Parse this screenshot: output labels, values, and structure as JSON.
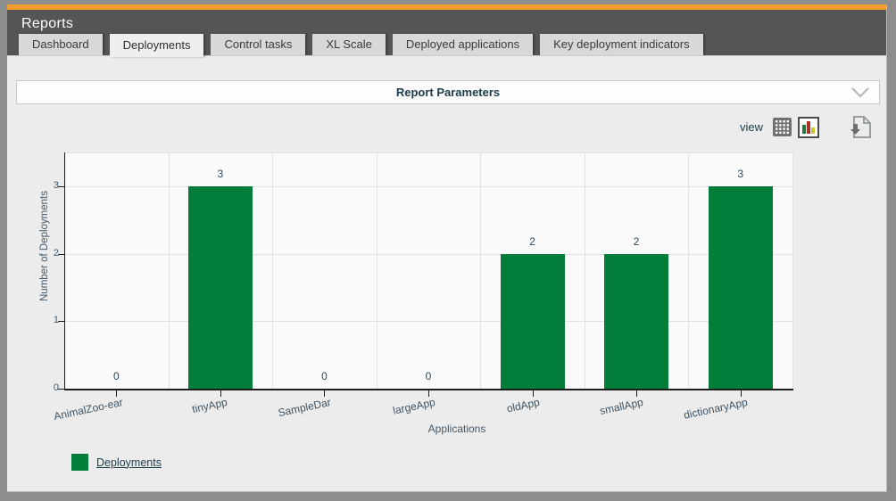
{
  "header": {
    "title": "Reports"
  },
  "tabs": [
    {
      "label": "Dashboard",
      "active": false
    },
    {
      "label": "Deployments",
      "active": true
    },
    {
      "label": "Control tasks",
      "active": false
    },
    {
      "label": "XL Scale",
      "active": false
    },
    {
      "label": "Deployed applications",
      "active": false
    },
    {
      "label": "Key deployment indicators",
      "active": false
    }
  ],
  "report_parameters": {
    "title": "Report Parameters",
    "collapsed": true
  },
  "toolbar": {
    "view_label": "view",
    "views": [
      "table",
      "chart"
    ],
    "selected_view": "chart",
    "icons": [
      "table-view-icon",
      "chart-view-icon",
      "export-report-icon"
    ]
  },
  "chart_data": {
    "type": "bar",
    "title": "",
    "categories": [
      "AnimalZoo-ear",
      "tinyApp",
      "SampleDar",
      "largeApp",
      "oldApp",
      "smallApp",
      "dictionaryApp"
    ],
    "series": [
      {
        "name": "Deployments",
        "values": [
          0,
          3,
          0,
          0,
          2,
          2,
          3
        ],
        "color": "#027e3a"
      }
    ],
    "xlabel": "Applications",
    "ylabel": "Number of Deployments",
    "yticks": [
      0,
      1,
      2,
      3
    ],
    "ylim": [
      0,
      3.5
    ],
    "grid": true,
    "bar_value_labels": true,
    "legend_position": "bottom-left"
  },
  "legend": {
    "items": [
      {
        "label": "Deployments",
        "color": "#027e3a"
      }
    ]
  },
  "colors": {
    "accent_orange": "#f59c31",
    "header_gray": "#555555",
    "bar_green": "#027e3a",
    "text_dark": "#1d3a4a"
  }
}
